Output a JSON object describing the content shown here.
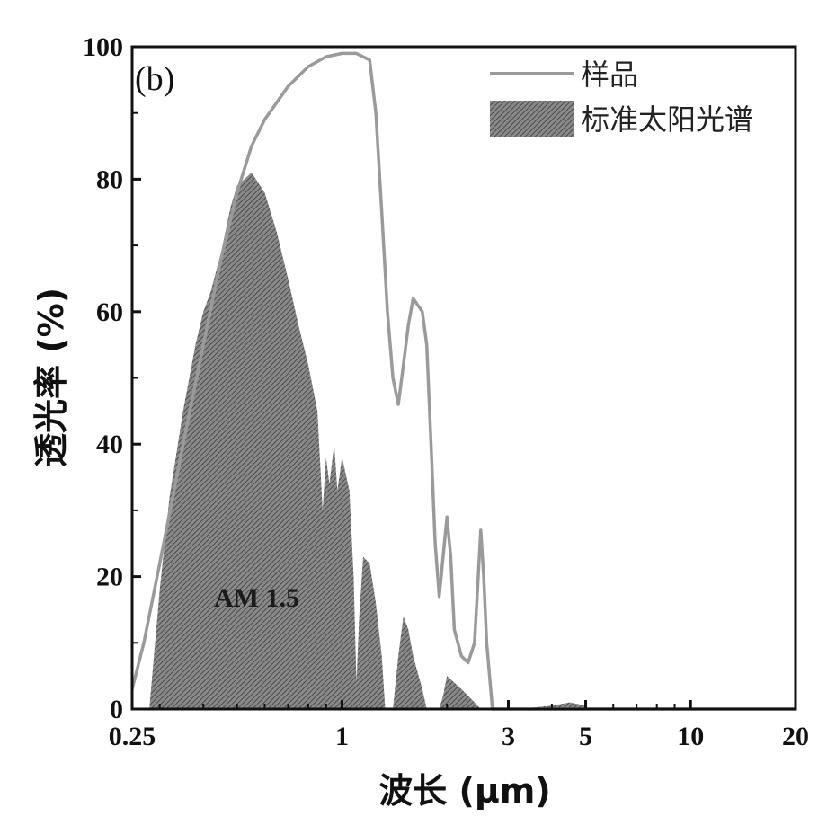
{
  "chart_data": {
    "type": "area",
    "panel_label": "(b)",
    "xlabel": "波长 (μm)",
    "ylabel": "透光率 (%)",
    "xscale": "log",
    "xlim": [
      0.25,
      20
    ],
    "ylim": [
      0,
      100
    ],
    "xticks": [
      0.25,
      1,
      3,
      5,
      10,
      20
    ],
    "xtick_labels": [
      "0.25",
      "1",
      "3",
      "5",
      "10",
      "20"
    ],
    "yticks": [
      0,
      20,
      40,
      60,
      80,
      100
    ],
    "ytick_labels": [
      "0",
      "20",
      "40",
      "60",
      "80",
      "100"
    ],
    "legend_position": "top-right",
    "annotation": "AM 1.5",
    "colors": {
      "sample_line": "#9a9a9a",
      "solar_fill": "#707070",
      "axis": "#111111"
    },
    "series": [
      {
        "name": "样品",
        "kind": "line",
        "x": [
          0.25,
          0.27,
          0.3,
          0.35,
          0.4,
          0.45,
          0.5,
          0.55,
          0.6,
          0.7,
          0.8,
          0.9,
          1.0,
          1.1,
          1.2,
          1.25,
          1.3,
          1.35,
          1.4,
          1.45,
          1.5,
          1.55,
          1.6,
          1.7,
          1.75,
          1.8,
          1.85,
          1.9,
          1.95,
          2.0,
          2.05,
          2.1,
          2.2,
          2.3,
          2.4,
          2.5,
          2.55,
          2.6,
          2.65,
          2.7,
          3.0,
          5.0,
          10.0,
          20.0
        ],
        "y": [
          3,
          10,
          22,
          40,
          55,
          68,
          78,
          85,
          89,
          94,
          97,
          98.5,
          99,
          99,
          98,
          90,
          75,
          60,
          50,
          46,
          52,
          58,
          62,
          60,
          55,
          40,
          25,
          17,
          23,
          29,
          23,
          12,
          8,
          7,
          10,
          27,
          20,
          10,
          5,
          0,
          0,
          0,
          0,
          0
        ]
      },
      {
        "name": "标准太阳光谱",
        "kind": "area",
        "x": [
          0.28,
          0.3,
          0.32,
          0.35,
          0.38,
          0.4,
          0.42,
          0.45,
          0.48,
          0.5,
          0.55,
          0.6,
          0.65,
          0.7,
          0.75,
          0.8,
          0.85,
          0.88,
          0.9,
          0.92,
          0.95,
          0.97,
          1.0,
          1.05,
          1.08,
          1.1,
          1.12,
          1.15,
          1.2,
          1.25,
          1.3,
          1.33,
          1.35,
          1.4,
          1.45,
          1.5,
          1.55,
          1.6,
          1.7,
          1.75,
          1.8,
          1.85,
          1.9,
          1.95,
          2.0,
          2.1,
          2.2,
          2.3,
          2.4,
          2.5,
          2.6,
          2.7,
          3.0,
          3.5,
          4.0,
          4.5,
          5.0
        ],
        "y": [
          0,
          18,
          32,
          45,
          55,
          60,
          63,
          69,
          76,
          79,
          81,
          78,
          72,
          65,
          58,
          52,
          45,
          30,
          38,
          34,
          40,
          33,
          38,
          33,
          20,
          4,
          14,
          23,
          22,
          16,
          8,
          0,
          0,
          0,
          8,
          14,
          12,
          8,
          3,
          0,
          0,
          0,
          0,
          2,
          5,
          4,
          3,
          2,
          1,
          0,
          0,
          0,
          0,
          0.2,
          0.5,
          1,
          0.5
        ]
      }
    ]
  }
}
